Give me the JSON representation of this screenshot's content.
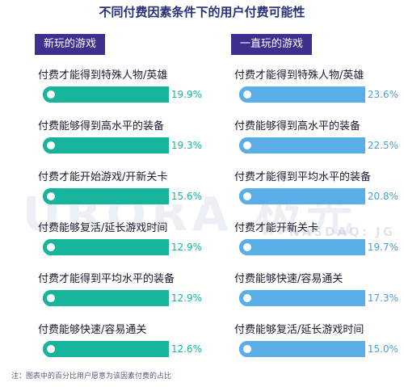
{
  "title": "不同付费因素条件下的用户付费可能性",
  "note": "注：图表中的百分比用户愿意为该因素付费的占比",
  "watermark": {
    "text": "URORA 极光",
    "subtext": "NASDAQ: JG"
  },
  "colors": {
    "header_bg": "#3f2f8f",
    "left_bar": "#16b49a",
    "right_bar": "#5aaee8",
    "left_value_text": "#16b49a",
    "right_value_text": "#4a9fd8"
  },
  "chart_data": {
    "type": "bar",
    "title": "不同付费因素条件下的用户付费可能性",
    "panels": [
      {
        "name": "新玩的游戏",
        "categories": [
          "付费才能得到特殊人物/英雄",
          "付费能够得到高水平的装备",
          "付费才能开始游戏/开新关卡",
          "付费能够复活/延长游戏时间",
          "付费才能得到平均水平的装备",
          "付费能够快速/容易通关"
        ],
        "values": [
          19.9,
          19.3,
          15.6,
          12.9,
          12.9,
          12.6
        ],
        "labels": [
          "19.9%",
          "19.3%",
          "15.6%",
          "12.9%",
          "12.9%",
          "12.6%"
        ]
      },
      {
        "name": "一直玩的游戏",
        "categories": [
          "付费才能得到特殊人物/英雄",
          "付费能够得到高水平的装备",
          "付费才能得到平均水平的装备",
          "付费才能开新关卡",
          "付费能够快速/容易通关",
          "付费能够复活/延长游戏时间"
        ],
        "values": [
          23.6,
          22.5,
          20.8,
          19.7,
          17.3,
          15.0
        ],
        "labels": [
          "23.6%",
          "22.5%",
          "20.8%",
          "19.7%",
          "17.3%",
          "15.0%"
        ]
      }
    ]
  }
}
